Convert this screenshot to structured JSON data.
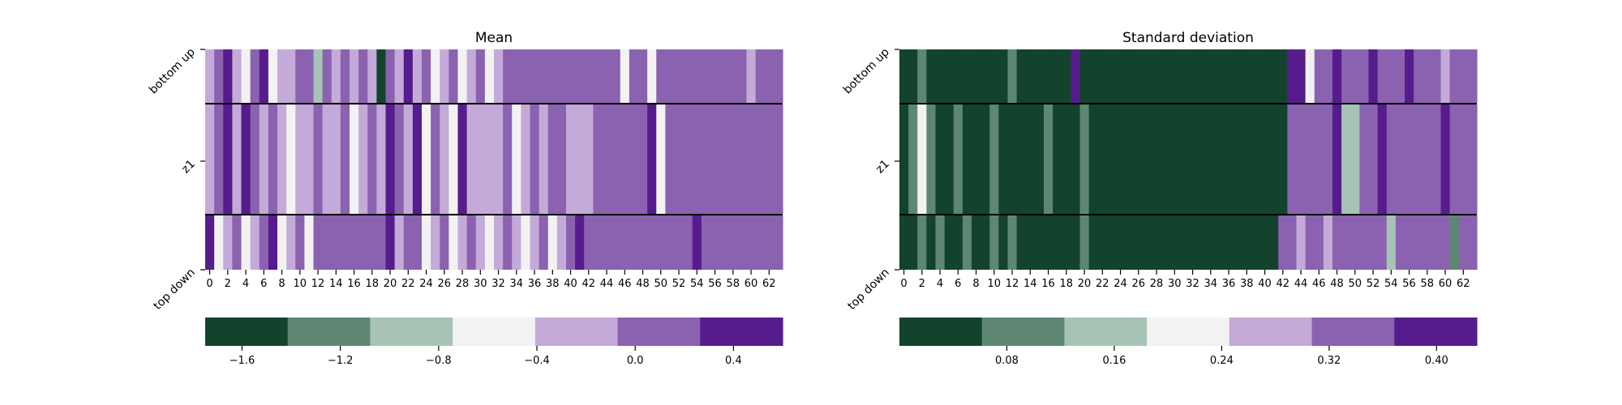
{
  "colors": {
    "palette": [
      "#13432d",
      "#5d8772",
      "#a7c3b5",
      "#f2f2f2",
      "#c4aad8",
      "#8a62b0",
      "#561c8e"
    ],
    "grid_line": "#000000"
  },
  "chart_data": [
    {
      "type": "heatmap",
      "title": "Mean",
      "rows": [
        "bottom up",
        "z1",
        "top down"
      ],
      "x_tick_labels": [
        "0",
        "2",
        "4",
        "6",
        "8",
        "10",
        "12",
        "14",
        "16",
        "18",
        "20",
        "22",
        "24",
        "26",
        "28",
        "30",
        "32",
        "34",
        "36",
        "38",
        "40",
        "42",
        "44",
        "46",
        "48",
        "50",
        "52",
        "54",
        "56",
        "58",
        "60",
        "62"
      ],
      "n_columns": 64,
      "colorbar": {
        "type": "discrete",
        "tick_labels": [
          "−1.6",
          "−1.2",
          "−0.8",
          "−0.4",
          "0.0",
          "0.4"
        ],
        "min": -1.75,
        "max": 0.6,
        "levels": [
          -1.6,
          -1.2,
          -0.9,
          -0.55,
          -0.2,
          0.1,
          0.45
        ]
      },
      "level_rows": [
        [
          4,
          5,
          6,
          4,
          3,
          5,
          6,
          3,
          4,
          4,
          5,
          5,
          2,
          5,
          4,
          5,
          4,
          5,
          4,
          0,
          5,
          4,
          6,
          4,
          5,
          3,
          4,
          5,
          3,
          4,
          5,
          3,
          4,
          5,
          5,
          5,
          5,
          5,
          5,
          5,
          5,
          5,
          5,
          5,
          5,
          5,
          3,
          5,
          5,
          3,
          5,
          5,
          5,
          5,
          5,
          5,
          5,
          5,
          5,
          5,
          4,
          5,
          5,
          5
        ],
        [
          4,
          5,
          6,
          4,
          6,
          5,
          4,
          5,
          4,
          3,
          4,
          4,
          5,
          4,
          4,
          5,
          3,
          4,
          5,
          4,
          6,
          5,
          4,
          6,
          3,
          5,
          4,
          3,
          6,
          4,
          4,
          4,
          4,
          5,
          3,
          4,
          5,
          4,
          5,
          5,
          4,
          4,
          4,
          5,
          5,
          5,
          5,
          5,
          5,
          6,
          3,
          5,
          5,
          5,
          5,
          5,
          5,
          5,
          5,
          5,
          5,
          5,
          5,
          5
        ],
        [
          6,
          3,
          4,
          5,
          3,
          4,
          5,
          6,
          3,
          4,
          5,
          3,
          5,
          5,
          5,
          5,
          5,
          5,
          5,
          5,
          6,
          4,
          5,
          5,
          3,
          4,
          5,
          3,
          4,
          5,
          4,
          3,
          4,
          5,
          4,
          3,
          4,
          5,
          3,
          4,
          5,
          6,
          5,
          5,
          5,
          5,
          5,
          5,
          5,
          5,
          5,
          5,
          5,
          5,
          6,
          5,
          5,
          5,
          5,
          5,
          5,
          5,
          5,
          5
        ]
      ]
    },
    {
      "type": "heatmap",
      "title": "Standard deviation",
      "rows": [
        "bottom up",
        "z1",
        "top down"
      ],
      "x_tick_labels": [
        "0",
        "2",
        "4",
        "6",
        "8",
        "10",
        "12",
        "14",
        "16",
        "18",
        "20",
        "22",
        "24",
        "26",
        "28",
        "30",
        "32",
        "34",
        "36",
        "38",
        "40",
        "42",
        "44",
        "46",
        "48",
        "50",
        "52",
        "54",
        "56",
        "58",
        "60",
        "62"
      ],
      "n_columns": 64,
      "colorbar": {
        "type": "discrete",
        "tick_labels": [
          "0.08",
          "0.16",
          "0.24",
          "0.32",
          "0.40"
        ],
        "min": 0.0,
        "max": 0.43,
        "levels": [
          0.02,
          0.09,
          0.15,
          0.21,
          0.28,
          0.34,
          0.4
        ]
      },
      "level_rows": [
        [
          0,
          0,
          1,
          0,
          0,
          0,
          0,
          0,
          0,
          0,
          0,
          0,
          1,
          0,
          0,
          0,
          0,
          0,
          0,
          6,
          0,
          0,
          0,
          0,
          0,
          0,
          0,
          0,
          0,
          0,
          0,
          0,
          0,
          0,
          0,
          0,
          0,
          0,
          0,
          0,
          0,
          0,
          0,
          6,
          6,
          3,
          5,
          5,
          6,
          5,
          5,
          5,
          6,
          5,
          5,
          5,
          6,
          5,
          5,
          5,
          4,
          5,
          5,
          5
        ],
        [
          0,
          1,
          3,
          1,
          0,
          0,
          1,
          0,
          0,
          0,
          1,
          0,
          0,
          0,
          0,
          0,
          1,
          0,
          0,
          0,
          1,
          0,
          0,
          0,
          0,
          0,
          0,
          0,
          0,
          0,
          0,
          0,
          0,
          0,
          0,
          0,
          0,
          0,
          0,
          0,
          0,
          0,
          0,
          5,
          5,
          5,
          5,
          5,
          6,
          2,
          2,
          5,
          5,
          6,
          5,
          5,
          5,
          5,
          5,
          5,
          6,
          5,
          5,
          5
        ],
        [
          0,
          0,
          1,
          0,
          1,
          0,
          0,
          1,
          0,
          0,
          1,
          0,
          1,
          0,
          0,
          0,
          0,
          0,
          0,
          0,
          1,
          0,
          0,
          0,
          0,
          0,
          0,
          0,
          0,
          0,
          0,
          0,
          0,
          0,
          0,
          0,
          0,
          0,
          0,
          0,
          0,
          0,
          5,
          5,
          4,
          5,
          5,
          4,
          5,
          5,
          5,
          5,
          5,
          5,
          2,
          5,
          5,
          5,
          5,
          5,
          5,
          1,
          5,
          5
        ]
      ]
    }
  ]
}
